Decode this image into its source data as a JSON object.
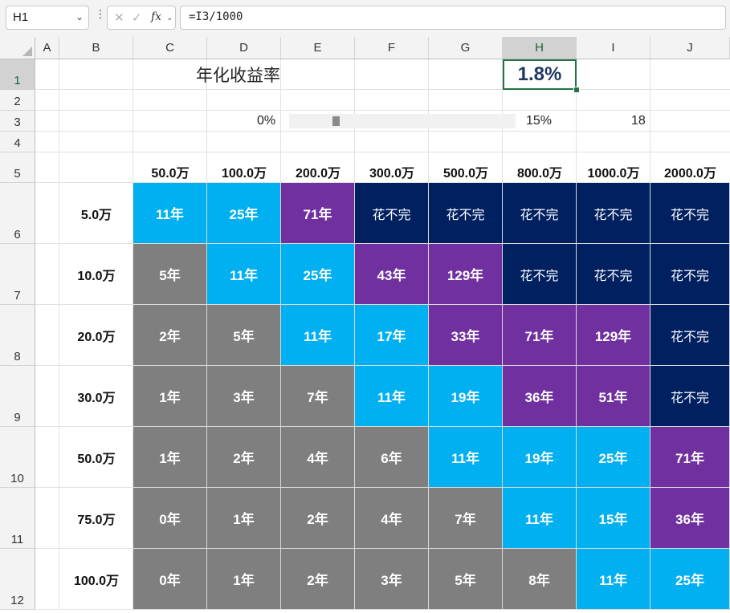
{
  "formula_bar": {
    "name_box": "H1",
    "name_box_arrow": "⌄",
    "dots": "⋮",
    "cancel": "✕",
    "enter": "✓",
    "fx": "fx",
    "fx_arrow": "⌄",
    "formula": "=I3/1000"
  },
  "columns": [
    "A",
    "B",
    "C",
    "D",
    "E",
    "F",
    "G",
    "H",
    "I",
    "J"
  ],
  "rows": [
    "1",
    "2",
    "3",
    "4",
    "5",
    "6",
    "7",
    "8",
    "9",
    "10",
    "11",
    "12"
  ],
  "selected_cell": {
    "column": "H",
    "row": "1"
  },
  "sheet": {
    "title": "年化收益率",
    "rate_value": "1.8%",
    "slider_min_label": "0%",
    "slider_max_label": "15%",
    "slider_value": "18",
    "slider_fraction": 0.12
  },
  "table": {
    "column_headers": [
      "50.0万",
      "100.0万",
      "200.0万",
      "300.0万",
      "500.0万",
      "800.0万",
      "1000.0万",
      "2000.0万"
    ],
    "row_headers": [
      "5.0万",
      "10.0万",
      "20.0万",
      "30.0万",
      "50.0万",
      "75.0万",
      "100.0万"
    ],
    "cells": [
      [
        "11年",
        "25年",
        "71年",
        "花不完",
        "花不完",
        "花不完",
        "花不完",
        "花不完"
      ],
      [
        "5年",
        "11年",
        "25年",
        "43年",
        "129年",
        "花不完",
        "花不完",
        "花不完"
      ],
      [
        "2年",
        "5年",
        "11年",
        "17年",
        "33年",
        "71年",
        "129年",
        "花不完"
      ],
      [
        "1年",
        "3年",
        "7年",
        "11年",
        "19年",
        "36年",
        "51年",
        "花不完"
      ],
      [
        "1年",
        "2年",
        "4年",
        "6年",
        "11年",
        "19年",
        "25年",
        "71年"
      ],
      [
        "0年",
        "1年",
        "2年",
        "4年",
        "7年",
        "11年",
        "15年",
        "36年"
      ],
      [
        "0年",
        "1年",
        "2年",
        "3年",
        "5年",
        "8年",
        "11年",
        "25年"
      ]
    ],
    "cell_styles": [
      [
        "cyan",
        "cyan",
        "purple",
        "navy",
        "navy",
        "navy",
        "navy",
        "navy"
      ],
      [
        "gray",
        "cyan",
        "cyan",
        "purple",
        "purple",
        "navy",
        "navy",
        "navy"
      ],
      [
        "gray",
        "gray",
        "cyan",
        "cyan",
        "purple",
        "purple",
        "purple",
        "navy"
      ],
      [
        "gray",
        "gray",
        "gray",
        "cyan",
        "cyan",
        "purple",
        "purple",
        "navy"
      ],
      [
        "gray",
        "gray",
        "gray",
        "gray",
        "cyan",
        "cyan",
        "cyan",
        "purple"
      ],
      [
        "gray",
        "gray",
        "gray",
        "gray",
        "gray",
        "cyan",
        "cyan",
        "purple"
      ],
      [
        "gray",
        "gray",
        "gray",
        "gray",
        "gray",
        "gray",
        "cyan",
        "cyan"
      ]
    ]
  },
  "colors": {
    "gray": "#7f7f7f",
    "cyan": "#00b0f0",
    "purple": "#7030a0",
    "navy": "#002060",
    "selection": "#217346",
    "rate_text": "#1f3864"
  }
}
